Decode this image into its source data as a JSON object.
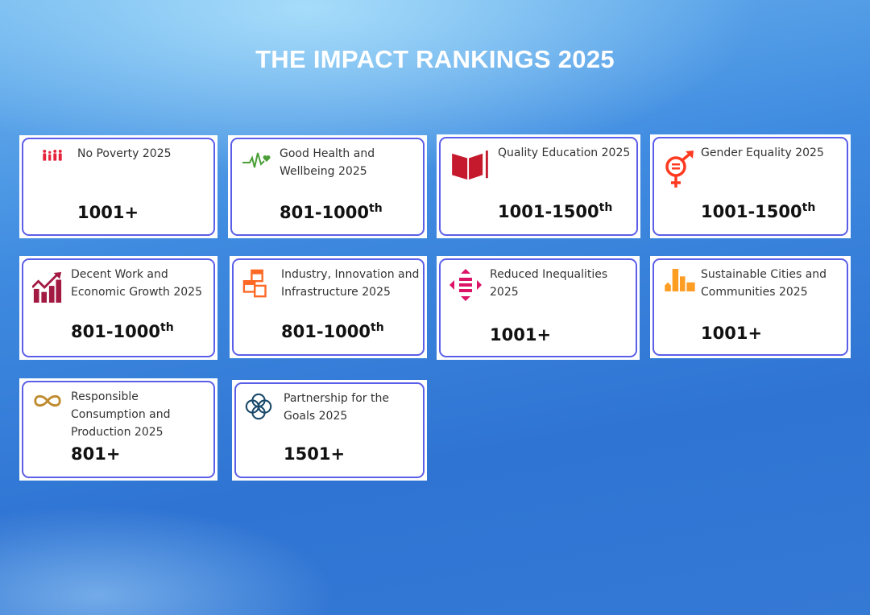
{
  "title": "THE IMPACT RANKINGS 2025",
  "cards": [
    {
      "label": "No Poverty 2025",
      "rank": "1001+",
      "suffix": "",
      "icon": "family-icon",
      "color": "#e5243b"
    },
    {
      "label": "Good Health and Wellbeing 2025",
      "rank": "801-1000",
      "suffix": "th",
      "icon": "heartbeat-icon",
      "color": "#4c9f38"
    },
    {
      "label": "Quality Education 2025",
      "rank": "1001-1500",
      "suffix": "th",
      "icon": "book-pencil-icon",
      "color": "#c5192d"
    },
    {
      "label": "Gender Equality 2025",
      "rank": "1001-1500",
      "suffix": "th",
      "icon": "gender-equality-icon",
      "color": "#ff3a21"
    },
    {
      "label": "Decent Work and Economic Growth 2025",
      "rank": "801-1000",
      "suffix": "th",
      "icon": "growth-chart-icon",
      "color": "#a21942"
    },
    {
      "label": "Industry, Innovation and Infrastructure 2025",
      "rank": "801-1000",
      "suffix": "th",
      "icon": "cubes-icon",
      "color": "#fd6925"
    },
    {
      "label": "Reduced Inequalities 2025",
      "rank": "1001+",
      "suffix": "",
      "icon": "equal-arrows-icon",
      "color": "#dd1367"
    },
    {
      "label": "Sustainable Cities and Communities 2025",
      "rank": "1001+",
      "suffix": "",
      "icon": "city-icon",
      "color": "#fd9d24"
    },
    {
      "label": "Responsible Consumption and Production 2025",
      "rank": "801+",
      "suffix": "",
      "icon": "infinity-icon",
      "color": "#bf8b2e"
    },
    {
      "label": "Partnership for the Goals 2025",
      "rank": "1501+",
      "suffix": "",
      "icon": "flower-rings-icon",
      "color": "#19486a"
    }
  ]
}
